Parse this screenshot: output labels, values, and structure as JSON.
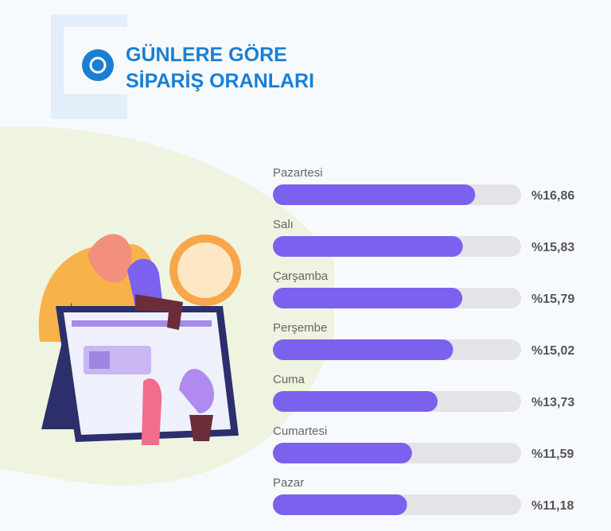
{
  "chart_data": {
    "type": "bar",
    "orientation": "horizontal",
    "title_lines": [
      "GÜNLERE GÖRE",
      "SİPARİŞ ORANLARI"
    ],
    "categories": [
      "Pazartesi",
      "Salı",
      "Çarşamba",
      "Perşembe",
      "Cuma",
      "Cumartesi",
      "Pazar"
    ],
    "values": [
      16.86,
      15.83,
      15.79,
      15.02,
      13.73,
      11.59,
      11.18
    ],
    "value_labels": [
      "%16,86",
      "%15,83",
      "%15,79",
      "%15,02",
      "%13,73",
      "%11,59",
      "%11,18"
    ],
    "color": "#7b61ee",
    "track_color": "#e4e4e8"
  }
}
